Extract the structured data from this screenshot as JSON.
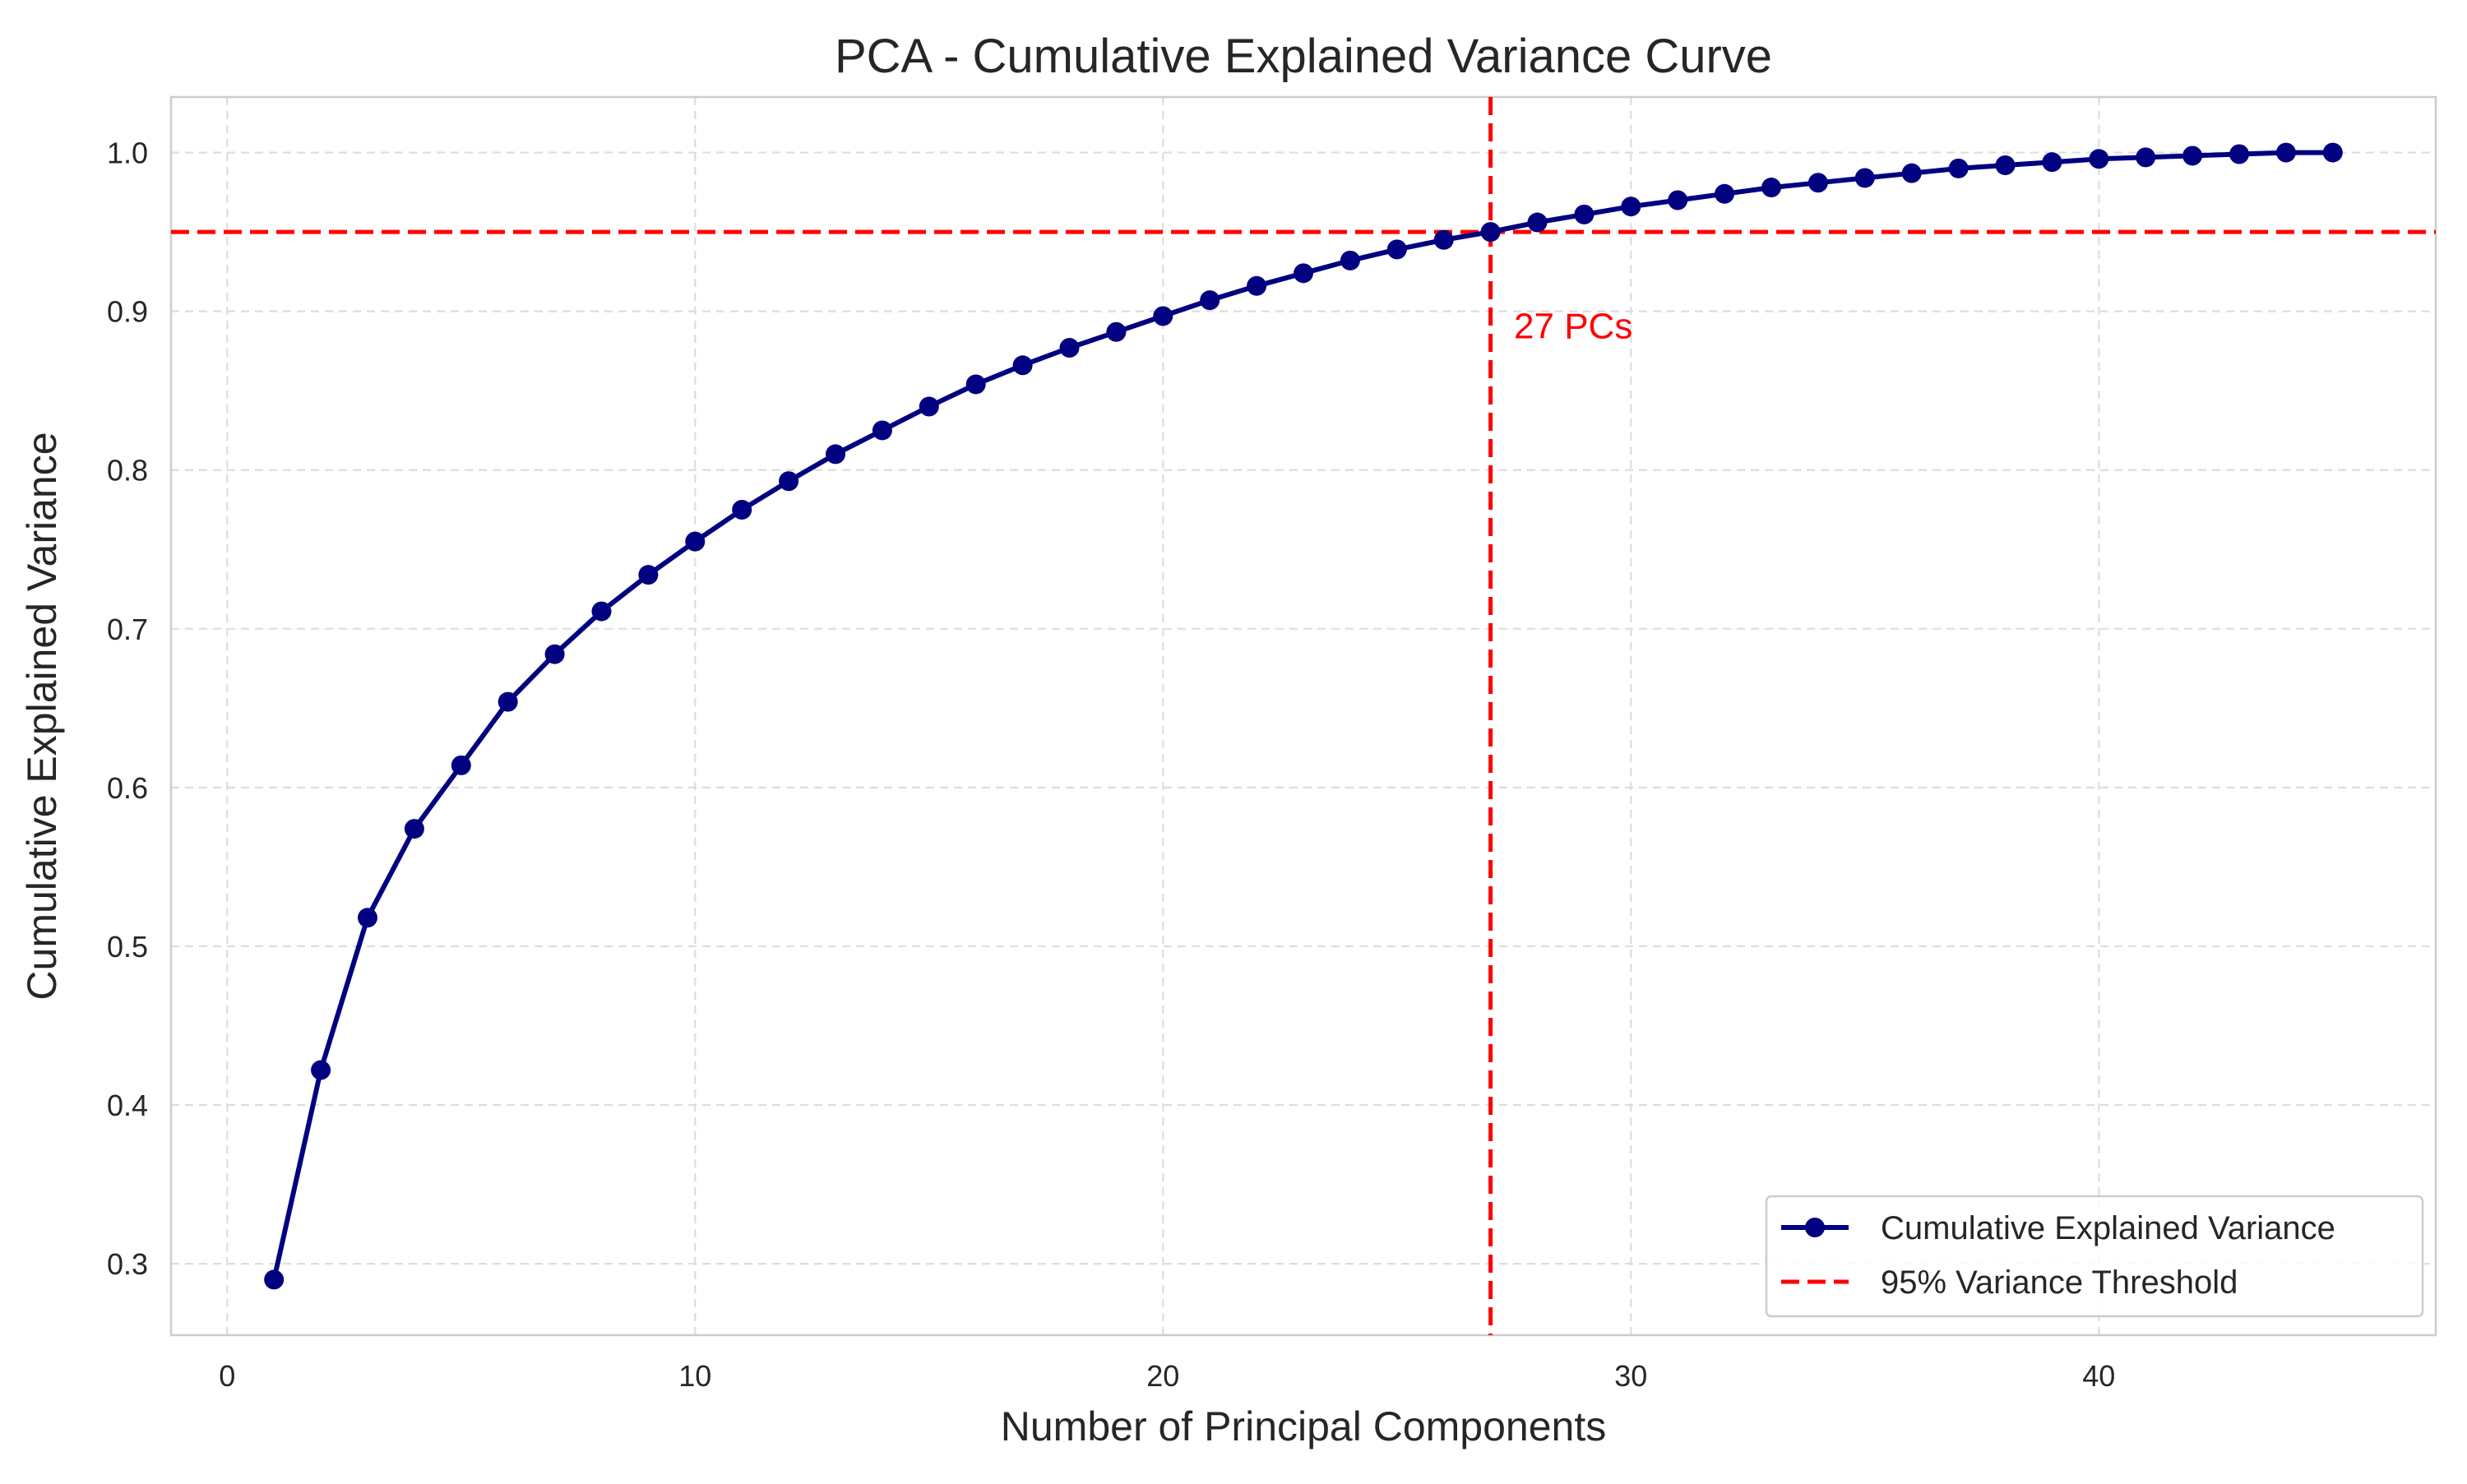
{
  "chart_data": {
    "type": "line",
    "title": "PCA - Cumulative Explained Variance Curve",
    "xlabel": "Number of Principal Components",
    "ylabel": "Cumulative Explained Variance",
    "xlim": [
      -1.2,
      47.2
    ],
    "ylim": [
      0.255,
      1.035
    ],
    "xticks": [
      0,
      10,
      20,
      30,
      40
    ],
    "yticks": [
      0.3,
      0.4,
      0.5,
      0.6,
      0.7,
      0.8,
      0.9,
      1.0
    ],
    "xtick_labels": [
      "0",
      "10",
      "20",
      "30",
      "40"
    ],
    "ytick_labels": [
      "0.3",
      "0.4",
      "0.5",
      "0.6",
      "0.7",
      "0.8",
      "0.9",
      "1.0"
    ],
    "grid": true,
    "legend_position": "lower-right",
    "series": [
      {
        "name": "Cumulative Explained Variance",
        "color": "#000080",
        "marker": "circle",
        "x": [
          1,
          2,
          3,
          4,
          5,
          6,
          7,
          8,
          9,
          10,
          11,
          12,
          13,
          14,
          15,
          16,
          17,
          18,
          19,
          20,
          21,
          22,
          23,
          24,
          25,
          26,
          27,
          28,
          29,
          30,
          31,
          32,
          33,
          34,
          35,
          36,
          37,
          38,
          39,
          40,
          41,
          42,
          43,
          44,
          45
        ],
        "y": [
          0.29,
          0.422,
          0.518,
          0.574,
          0.614,
          0.654,
          0.684,
          0.711,
          0.734,
          0.755,
          0.775,
          0.793,
          0.81,
          0.825,
          0.84,
          0.854,
          0.866,
          0.877,
          0.887,
          0.897,
          0.907,
          0.916,
          0.924,
          0.932,
          0.939,
          0.945,
          0.95,
          0.956,
          0.961,
          0.966,
          0.97,
          0.974,
          0.978,
          0.981,
          0.984,
          0.987,
          0.99,
          0.992,
          0.994,
          0.996,
          0.997,
          0.998,
          0.999,
          1.0,
          1.0
        ]
      }
    ],
    "threshold": {
      "name": "95% Variance Threshold",
      "y": 0.95,
      "color": "#ff0000",
      "style": "dashed"
    },
    "vertical_marker": {
      "x": 27,
      "color": "#ff0000",
      "style": "dashed"
    },
    "annotation": {
      "text": "27 PCs",
      "x": 27.5,
      "y": 0.883,
      "color": "#ff0000"
    }
  }
}
